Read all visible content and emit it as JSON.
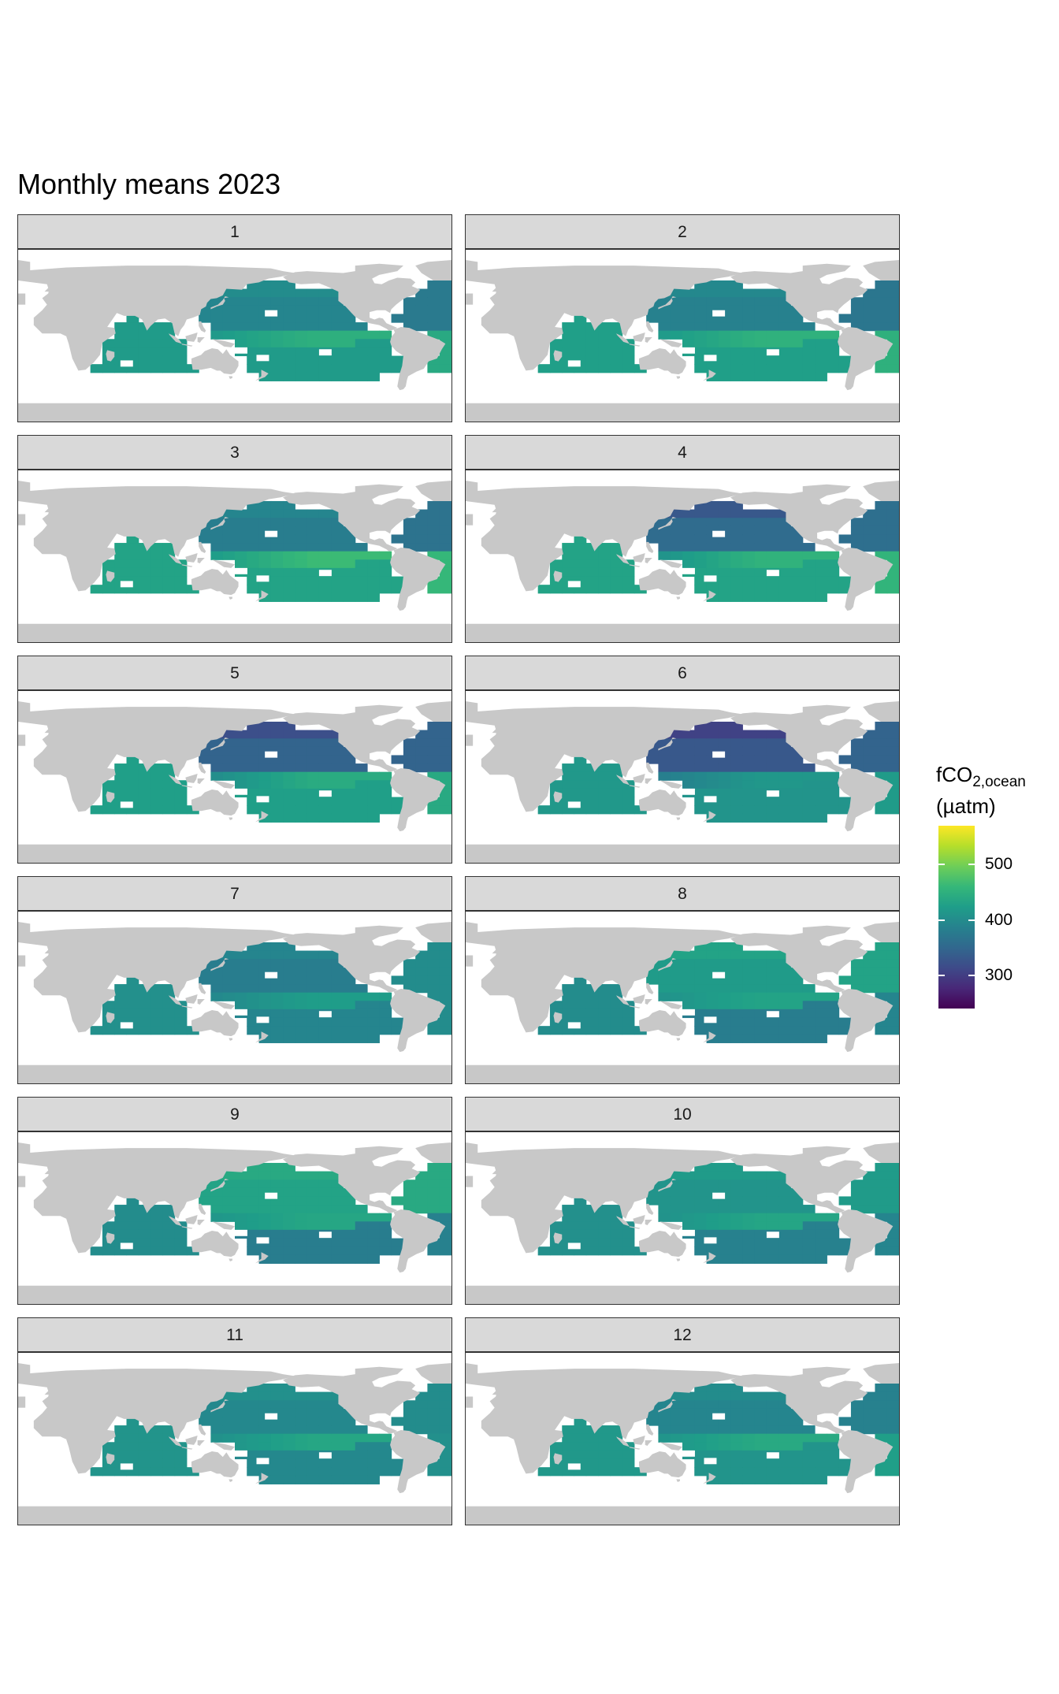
{
  "chart_data": {
    "type": "heatmap",
    "title": "Monthly means 2023",
    "facets": [
      "1",
      "2",
      "3",
      "4",
      "5",
      "6",
      "7",
      "8",
      "9",
      "10",
      "11",
      "12"
    ],
    "legend": {
      "title_main": "fCO",
      "title_sub": "2,ocean",
      "title_unit": "(µatm)",
      "ticks": [
        "300",
        "400",
        "500"
      ],
      "tick_values": [
        300,
        400,
        500
      ],
      "range": [
        240,
        570
      ],
      "palette": "viridis",
      "placement": "right"
    },
    "monthly_values": {
      "1": {
        "north_pacific": 390,
        "equatorial_pacific": 505,
        "south_pacific": 420,
        "north_atlantic": 375,
        "south_atlantic": 440,
        "indian_ocean": 420
      },
      "2": {
        "north_pacific": 385,
        "equatorial_pacific": 510,
        "south_pacific": 425,
        "north_atlantic": 370,
        "south_atlantic": 450,
        "indian_ocean": 425
      },
      "3": {
        "north_pacific": 380,
        "equatorial_pacific": 540,
        "south_pacific": 430,
        "north_atlantic": 365,
        "south_atlantic": 460,
        "indian_ocean": 430
      },
      "4": {
        "north_pacific": 355,
        "equatorial_pacific": 530,
        "south_pacific": 430,
        "north_atlantic": 360,
        "south_atlantic": 455,
        "indian_ocean": 430
      },
      "5": {
        "north_pacific": 345,
        "equatorial_pacific": 515,
        "south_pacific": 425,
        "north_atlantic": 345,
        "south_atlantic": 440,
        "indian_ocean": 425
      },
      "6": {
        "north_pacific": 330,
        "equatorial_pacific": 470,
        "south_pacific": 410,
        "north_atlantic": 345,
        "south_atlantic": 420,
        "indian_ocean": 415
      },
      "7": {
        "north_pacific": 380,
        "equatorial_pacific": 470,
        "south_pacific": 390,
        "north_atlantic": 400,
        "south_atlantic": 400,
        "indian_ocean": 405
      },
      "8": {
        "north_pacific": 420,
        "equatorial_pacific": 470,
        "south_pacific": 380,
        "north_atlantic": 430,
        "south_atlantic": 390,
        "indian_ocean": 400
      },
      "9": {
        "north_pacific": 430,
        "equatorial_pacific": 475,
        "south_pacific": 380,
        "north_atlantic": 440,
        "south_atlantic": 385,
        "indian_ocean": 400
      },
      "10": {
        "north_pacific": 410,
        "equatorial_pacific": 480,
        "south_pacific": 385,
        "north_atlantic": 420,
        "south_atlantic": 390,
        "indian_ocean": 405
      },
      "11": {
        "north_pacific": 395,
        "equatorial_pacific": 485,
        "south_pacific": 395,
        "north_atlantic": 400,
        "south_atlantic": 405,
        "indian_ocean": 410
      },
      "12": {
        "north_pacific": 390,
        "equatorial_pacific": 490,
        "south_pacific": 410,
        "north_atlantic": 385,
        "south_atlantic": 425,
        "indian_ocean": 415
      }
    },
    "land_color": "#c8c8c8",
    "grid": false
  }
}
